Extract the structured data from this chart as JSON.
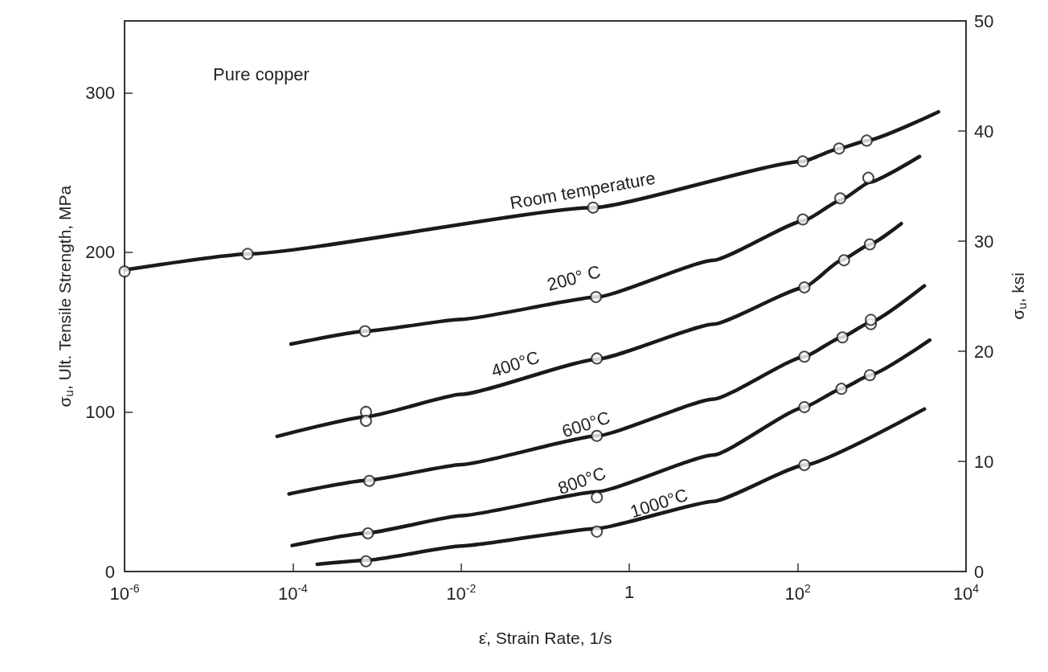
{
  "chart_data": {
    "type": "line",
    "xlabel": "ε̇, Strain Rate, 1/s",
    "ylabel": "σ$_{u}$, Ult. Tensile Strength, MPa",
    "y2label": "σ$_{u}$, ksi",
    "log": "x",
    "xlim": [
      1e-06,
      10000
    ],
    "xticks": [
      {
        "value": 1e-06,
        "label": "10$^{-6}$"
      },
      {
        "value": 0.0001,
        "label": "10$^{-4}$"
      },
      {
        "value": 0.01,
        "label": "10$^{-2}$"
      },
      1,
      {
        "value": 100,
        "label": "10$^{2}$"
      },
      {
        "value": 10000,
        "label": "10$^{4}$"
      }
    ],
    "ylim": [
      0,
      345
    ],
    "yticks": [
      0,
      100,
      200,
      300
    ],
    "y2lim": [
      0,
      50
    ],
    "y2ticks": [
      0,
      10,
      20,
      30,
      40,
      50
    ],
    "grid": false,
    "annotations": [
      "Pure copper",
      "Room temperature",
      "200° C",
      "400°C",
      "600°C",
      "800°C",
      "1000°C"
    ],
    "series": [
      {
        "marker": "none",
        "color": "#1a1a1a",
        "x": [
          1e-06,
          2.9e-05,
          0.37,
          115,
          310,
          660,
          4700
        ],
        "values": [
          189,
          199,
          228,
          257,
          265,
          270,
          288
        ]
      },
      {
        "marker": "none",
        "color": "#1a1a1a",
        "x": [
          9.5e-05,
          0.00074,
          0.01,
          0.41,
          10,
          120,
          330,
          720,
          2800
        ],
        "values": [
          142.5,
          150.6,
          158,
          172,
          195,
          220,
          233,
          244,
          260
        ]
      },
      {
        "marker": "none",
        "color": "#1a1a1a",
        "x": [
          6.5e-05,
          0.00074,
          0.01,
          0.41,
          10,
          120,
          330,
          720,
          1700
        ],
        "values": [
          84.7,
          97,
          111,
          133,
          155,
          178,
          195,
          205,
          218
        ]
      },
      {
        "marker": "none",
        "color": "#1a1a1a",
        "x": [
          9e-05,
          0.00074,
          0.01,
          0.41,
          10,
          120,
          330,
          720,
          3200
        ],
        "values": [
          48.6,
          57,
          67,
          85,
          108,
          134.6,
          146.7,
          156,
          179
        ]
      },
      {
        "marker": "none",
        "color": "#1a1a1a",
        "x": [
          9.8e-05,
          0.00074,
          0.01,
          0.41,
          10,
          120,
          330,
          720,
          3700
        ],
        "values": [
          16.3,
          24,
          35,
          50,
          73,
          103,
          114.5,
          123,
          145
        ]
      },
      {
        "marker": "none",
        "color": "#1a1a1a",
        "x": [
          0.000195,
          0.00074,
          0.01,
          0.41,
          10,
          120,
          3200
        ],
        "values": [
          4.5,
          7,
          16,
          27,
          44,
          66.7,
          101.8
        ]
      },
      {
        "type": "scatter",
        "marker": "circle",
        "color": "#1a1a1a",
        "x": [
          1e-06,
          2.9e-05,
          0.37,
          115,
          310,
          660
        ],
        "values": [
          188,
          199,
          228,
          257,
          265,
          270
        ]
      },
      {
        "type": "scatter",
        "marker": "circle",
        "color": "#1a1a1a",
        "x": [
          0.00072,
          0.4,
          115,
          320,
          690
        ],
        "values": [
          150.6,
          172,
          220.6,
          233.8,
          246.7
        ]
      },
      {
        "type": "scatter",
        "marker": "circle",
        "color": "#1a1a1a",
        "x": [
          0.00074,
          0.00074,
          0.41,
          120,
          355,
          720
        ],
        "values": [
          100,
          94.4,
          133.5,
          178,
          195,
          205
        ]
      },
      {
        "type": "scatter",
        "marker": "circle",
        "color": "#1a1a1a",
        "x": [
          0.00081,
          0.41,
          120,
          340,
          740,
          740
        ],
        "values": [
          56.8,
          85,
          134.6,
          146.7,
          155,
          157.7
        ]
      },
      {
        "type": "scatter",
        "marker": "circle",
        "color": "#1a1a1a",
        "x": [
          0.00078,
          0.41,
          120,
          330,
          720
        ],
        "values": [
          23.9,
          46.5,
          103,
          114.5,
          123
        ]
      },
      {
        "type": "scatter",
        "marker": "circle",
        "color": "#1a1a1a",
        "x": [
          0.00074,
          0.41,
          120
        ],
        "values": [
          6.4,
          25,
          66.7
        ]
      }
    ]
  }
}
